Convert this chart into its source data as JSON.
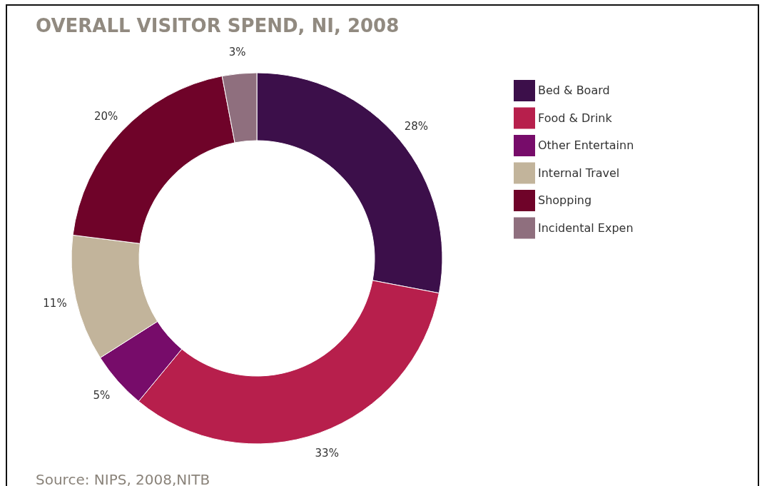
{
  "chart_data": {
    "type": "donut",
    "title": "OVERALL VISITOR SPEND, NI, 2008",
    "categories": [
      "Bed & Board",
      "Food & Drink",
      "Other Entertainn",
      "Internal Travel",
      "Shopping",
      "Incidental Expen"
    ],
    "values": [
      28,
      33,
      5,
      11,
      20,
      3
    ],
    "value_labels": [
      "28%",
      "33%",
      "5%",
      "11%",
      "20%",
      "3%"
    ],
    "colors": [
      "#3c0f4a",
      "#b71f4c",
      "#770c6a",
      "#c2b49b",
      "#6f0329",
      "#8f6f7e"
    ],
    "legend": "right",
    "annotations": [
      "Source: NIPS, 2008,NITB"
    ]
  }
}
